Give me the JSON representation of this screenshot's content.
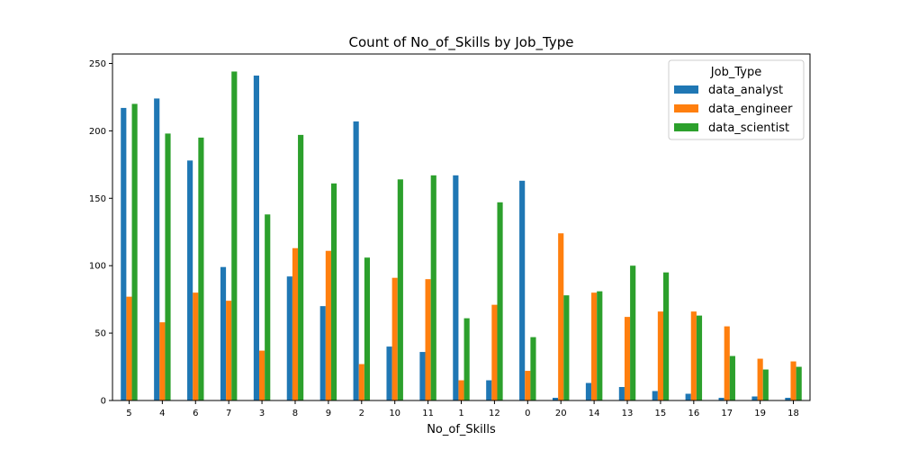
{
  "chart_data": {
    "type": "bar",
    "title": "Count of No_of_Skills by Job_Type",
    "xlabel": "No_of_Skills",
    "ylabel": "",
    "categories": [
      "5",
      "4",
      "6",
      "7",
      "3",
      "8",
      "9",
      "2",
      "10",
      "11",
      "1",
      "12",
      "0",
      "20",
      "14",
      "13",
      "15",
      "16",
      "17",
      "19",
      "18"
    ],
    "series": [
      {
        "name": "data_analyst",
        "color": "#1f77b4",
        "values": [
          217,
          224,
          178,
          99,
          241,
          92,
          70,
          207,
          40,
          36,
          167,
          15,
          163,
          2,
          13,
          10,
          7,
          5,
          2,
          3,
          2
        ]
      },
      {
        "name": "data_engineer",
        "color": "#ff7f0e",
        "values": [
          77,
          58,
          80,
          74,
          37,
          113,
          111,
          27,
          91,
          90,
          15,
          71,
          22,
          124,
          80,
          62,
          66,
          66,
          55,
          31,
          29
        ]
      },
      {
        "name": "data_scientist",
        "color": "#2ca02c",
        "values": [
          220,
          198,
          195,
          244,
          138,
          197,
          161,
          106,
          164,
          167,
          61,
          147,
          47,
          78,
          81,
          100,
          95,
          63,
          33,
          23,
          25
        ]
      }
    ],
    "ylim": [
      0,
      257
    ],
    "yticks": [
      0,
      50,
      100,
      150,
      200,
      250
    ],
    "grid": false,
    "legend": {
      "title": "Job_Type",
      "position": "top-right"
    }
  }
}
